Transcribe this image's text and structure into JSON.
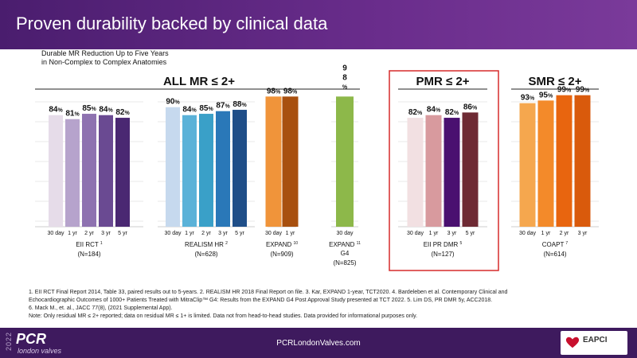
{
  "header": {
    "title": "Proven durability backed by clinical data"
  },
  "subtitle": {
    "line1": "Durable MR Reduction Up to Five Years",
    "line2": "in Non-Complex to Complex Anatomies"
  },
  "chart_data": {
    "type": "bar",
    "section_headers": {
      "all": "ALL MR ≤ 2+",
      "pmr": "PMR ≤ 2+",
      "smr": "SMR ≤ 2+"
    },
    "groups": [
      {
        "section": "all",
        "label": "EII RCT",
        "sup": "1",
        "n": "(N=184)",
        "categories": [
          "30 day",
          "1 yr",
          "2 yr",
          "3 yr",
          "5 yr"
        ],
        "values": [
          84,
          81,
          85,
          84,
          82
        ],
        "colors": [
          "#e6dce9",
          "#b6a3cc",
          "#8e72b0",
          "#6a4a92",
          "#4a2872"
        ]
      },
      {
        "section": "all",
        "label": "REALISM HR",
        "sup": "2",
        "n": "(N=628)",
        "categories": [
          "30 day",
          "1 yr",
          "2 yr",
          "3 yr",
          "5 yr"
        ],
        "values": [
          90,
          84,
          85,
          87,
          88
        ],
        "colors": [
          "#c6d9ee",
          "#5bb2d8",
          "#3aa0c8",
          "#2a78b8",
          "#1f4e88"
        ]
      },
      {
        "section": "all",
        "label": "EXPAND",
        "sup": "10",
        "n": "(N=909)",
        "categories": [
          "30 day",
          "1 yr"
        ],
        "values": [
          98,
          98
        ],
        "colors": [
          "#f0943a",
          "#a8500f"
        ]
      },
      {
        "section": "all",
        "label": "EXPAND",
        "label2": "G4",
        "sup": "11",
        "n": "(N=825)",
        "categories": [
          "30 day"
        ],
        "values": [
          98
        ],
        "colors": [
          "#8db84a"
        ]
      },
      {
        "section": "pmr",
        "label": "EII PR DMR",
        "sup": "5",
        "n": "(N=127)",
        "categories": [
          "30 day",
          "1 yr",
          "3 yr",
          "5 yr"
        ],
        "values": [
          82,
          84,
          82,
          86
        ],
        "colors": [
          "#f2e0e2",
          "#d89a9e",
          "#4a1070",
          "#6e2a34"
        ]
      },
      {
        "section": "smr",
        "label": "COAPT",
        "sup": "7",
        "n": "(N=614)",
        "categories": [
          "30 day",
          "1 yr",
          "2 yr",
          "3 yr"
        ],
        "values": [
          93,
          95,
          99,
          99
        ],
        "colors": [
          "#f5a74e",
          "#f38a2a",
          "#e8650f",
          "#d95a0c"
        ]
      }
    ],
    "percent_sign": "%",
    "ylim": [
      0,
      100
    ]
  },
  "footnotes": {
    "line1": "1. EII RCT Final Report 2014, Table 33, paired results out to 5-years.  2. REALISM HR 2018 Final Report on file.  3. Kar, EXPAND 1-year, TCT2020. 4. Bardeleben et al. Contemporary Clinical and",
    "line2": "Echocardiographic Outcomes of 1000+ Patients Treated with MitraClip™ G4: Results from the EXPAND G4 Post Approval Study presented at TCT 2022. 5. Lim DS, PR DMR 5y, ACC2018.",
    "line3": "6. Mack M., et. al., JACC 77(8), (2021 Supplemental App).",
    "line4": "Note: Only residual MR ≤ 2+ reported; data on residual MR ≤ 1+ is limited. Data not from head-to-head studies. Data provided for informational purposes only."
  },
  "footer": {
    "year": "2022",
    "brand": "PCR",
    "brand_sub": "london valves",
    "url": "PCRLondonValves.com",
    "logo_text": "EAPCI"
  }
}
